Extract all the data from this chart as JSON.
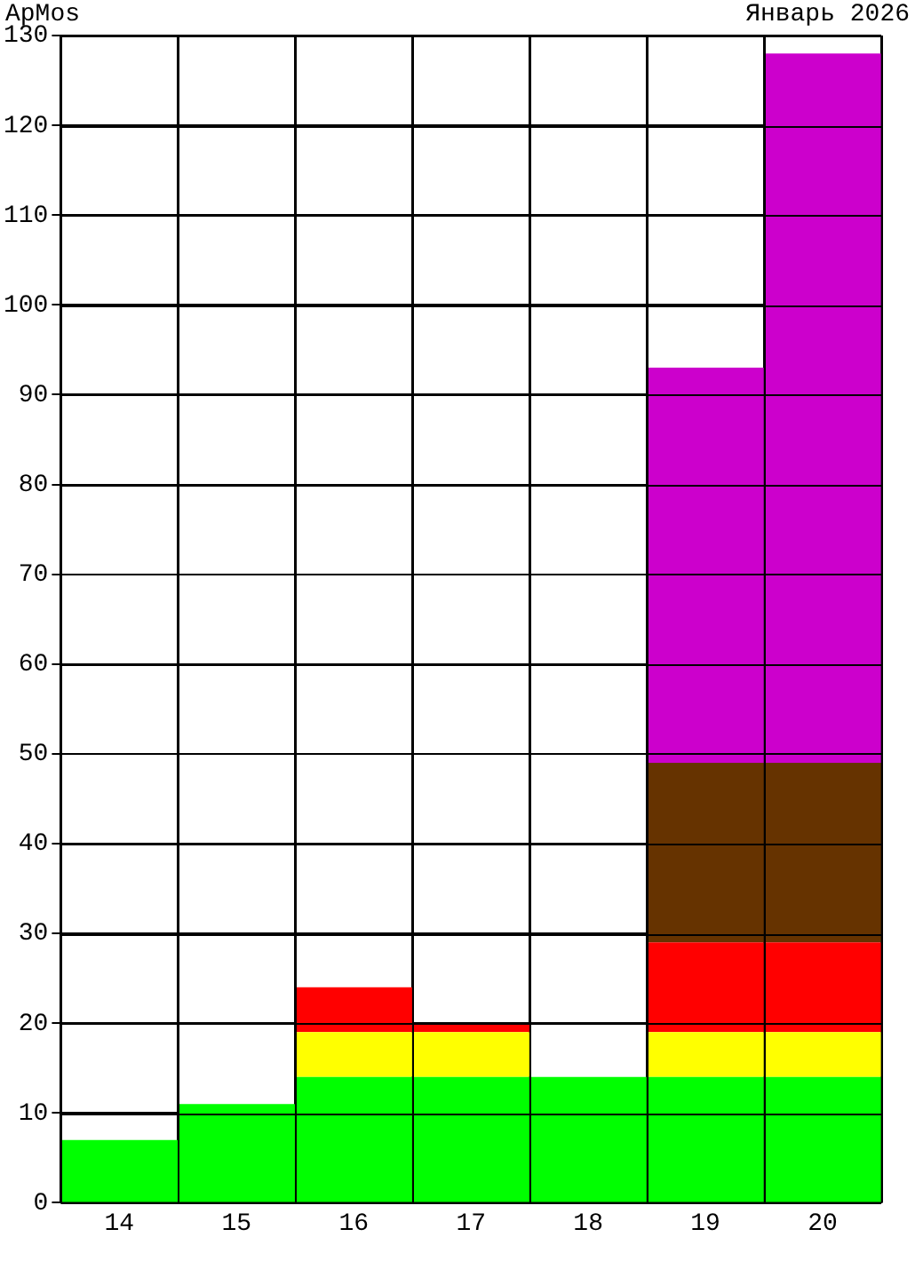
{
  "chart_data": {
    "type": "bar",
    "title": "ApMos",
    "subtitle": "Январь 2026",
    "categories": [
      "14",
      "15",
      "16",
      "17",
      "18",
      "19",
      "20"
    ],
    "stacked": true,
    "series": [
      {
        "color": "#00ff00",
        "values": [
          7,
          11,
          14,
          14,
          14,
          14,
          14
        ]
      },
      {
        "color": "#ffff00",
        "values": [
          0,
          0,
          5,
          5,
          0,
          5,
          5
        ]
      },
      {
        "color": "#ff0000",
        "values": [
          0,
          0,
          5,
          1,
          0,
          10,
          10
        ]
      },
      {
        "color": "#663300",
        "values": [
          0,
          0,
          0,
          0,
          0,
          20,
          20
        ]
      },
      {
        "color": "#cc00cc",
        "values": [
          0,
          0,
          0,
          0,
          0,
          44,
          79
        ]
      }
    ],
    "ylim": [
      0,
      130
    ],
    "yticks": [
      0,
      10,
      20,
      30,
      40,
      50,
      60,
      70,
      80,
      90,
      100,
      110,
      120,
      130
    ],
    "grid": true,
    "legend": false
  }
}
